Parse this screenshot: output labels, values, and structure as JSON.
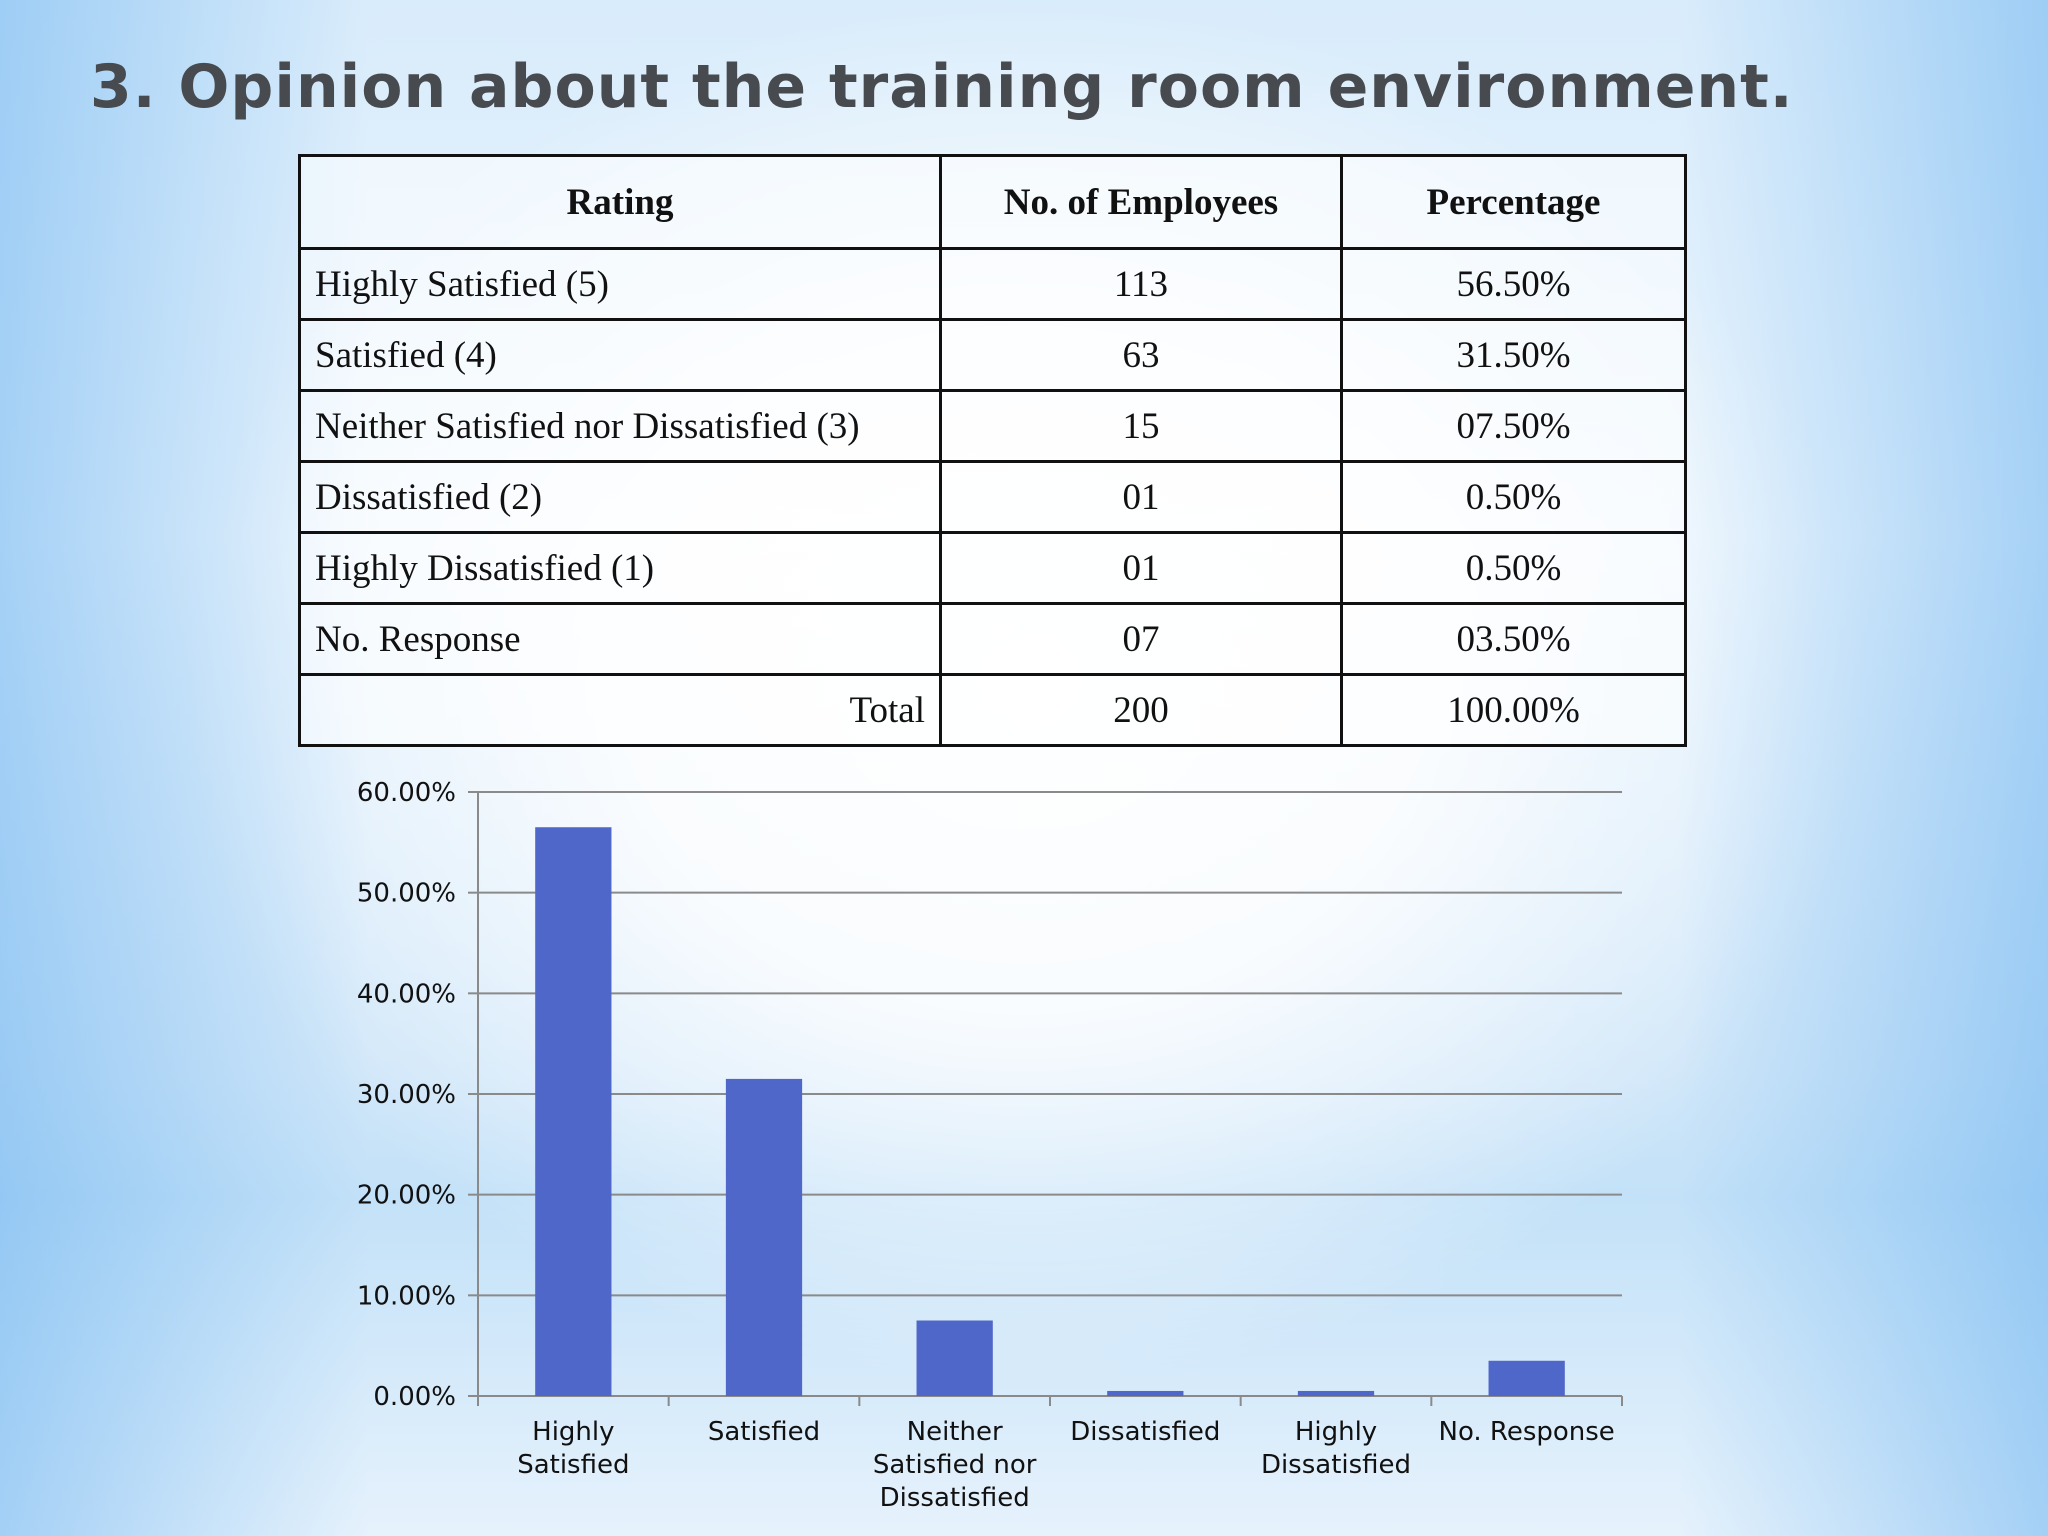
{
  "slide": {
    "title": "3. Opinion about the training room environment."
  },
  "table": {
    "headers": [
      "Rating",
      "No. of Employees",
      "Percentage"
    ],
    "rows": [
      {
        "rating": "Highly Satisfied (5)",
        "count": "113",
        "percentage": "56.50%"
      },
      {
        "rating": "Satisfied (4)",
        "count": "63",
        "percentage": "31.50%"
      },
      {
        "rating": "Neither Satisfied nor Dissatisfied (3)",
        "count": "15",
        "percentage": "07.50%"
      },
      {
        "rating": "Dissatisfied (2)",
        "count": "01",
        "percentage": "0.50%"
      },
      {
        "rating": "Highly Dissatisfied (1)",
        "count": "01",
        "percentage": "0.50%"
      },
      {
        "rating": "No. Response",
        "count": "07",
        "percentage": "03.50%"
      }
    ],
    "total": {
      "label": "Total",
      "count": "200",
      "percentage": "100.00%"
    }
  },
  "chart_data": {
    "type": "bar",
    "title": "",
    "xlabel": "",
    "ylabel": "",
    "categories": [
      [
        "Highly",
        "Satisfied"
      ],
      [
        "Satisfied"
      ],
      [
        "Neither",
        "Satisfied nor",
        "Dissatisfied"
      ],
      [
        "Dissatisfied"
      ],
      [
        "Highly",
        "Dissatisfied"
      ],
      [
        "No. Response"
      ]
    ],
    "values": [
      56.5,
      31.5,
      7.5,
      0.5,
      0.5,
      3.5
    ],
    "ylim": [
      0,
      60
    ],
    "yticks": [
      0,
      10,
      20,
      30,
      40,
      50,
      60
    ],
    "ytick_labels": [
      "0.00%",
      "10.00%",
      "20.00%",
      "30.00%",
      "40.00%",
      "50.00%",
      "60.00%"
    ],
    "grid": true,
    "legend": "none",
    "bar_color": "#4f67c9",
    "grid_color": "#8a8a8a"
  }
}
